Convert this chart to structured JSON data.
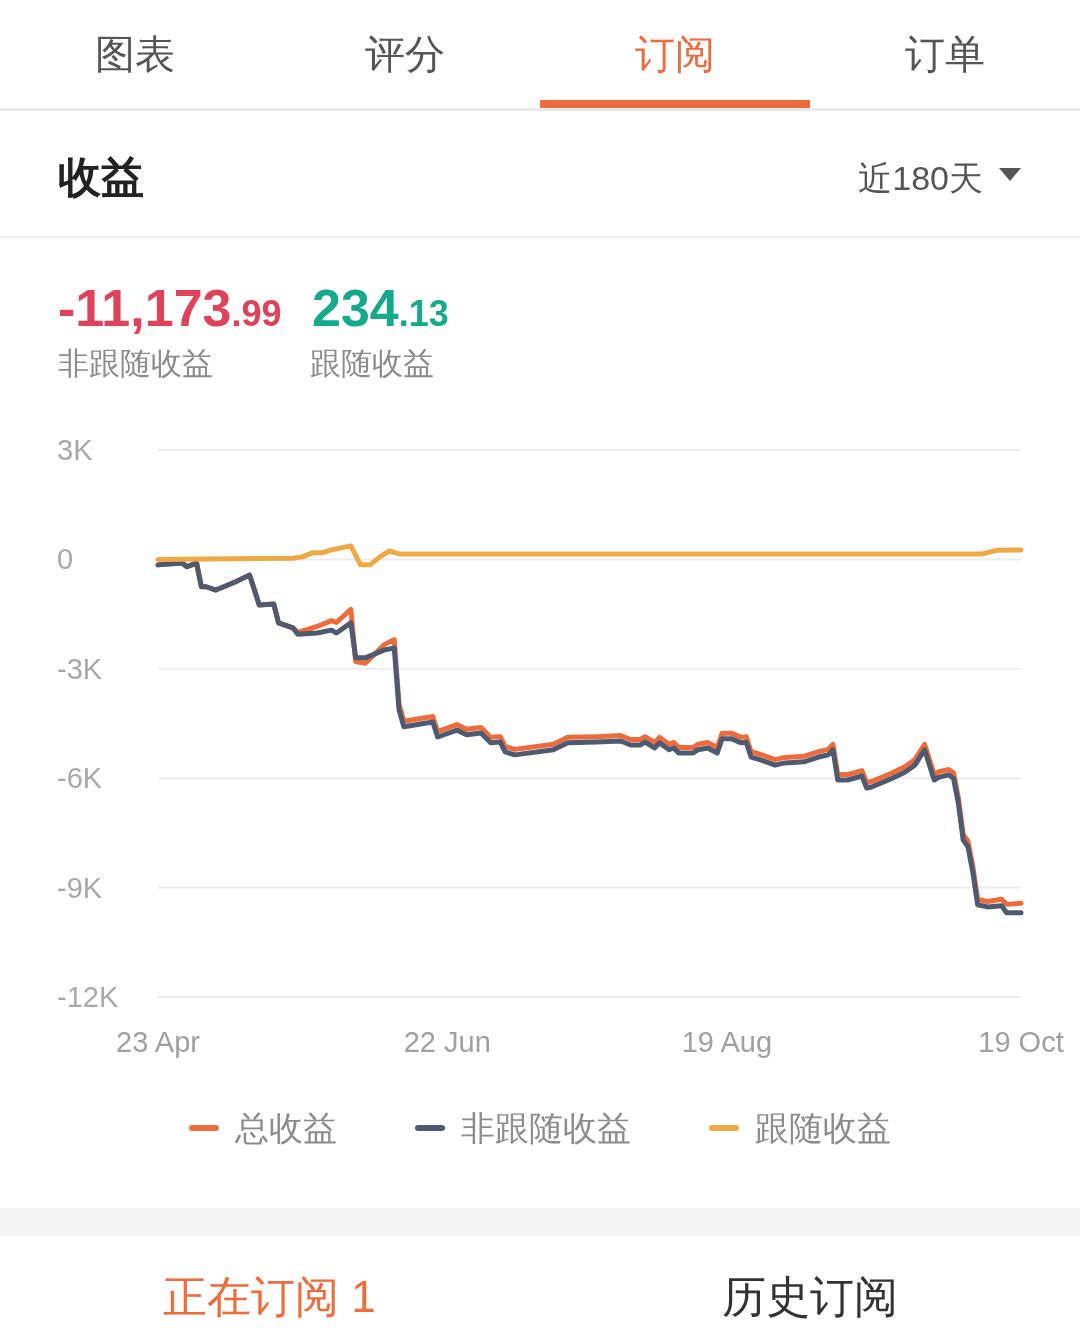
{
  "chart_data": {
    "type": "line",
    "title": "收益",
    "annotations": [
      "图表",
      "评分",
      "订阅",
      "订单",
      "近180天",
      "-11,173.99",
      "非跟随收益",
      "234.13",
      "跟随收益",
      "正在订阅 1",
      "历史订阅"
    ],
    "x": [
      "--04-23",
      "--04-28",
      "--04-29",
      "--05-01",
      "--05-02",
      "--05-03",
      "--05-05",
      "--05-07",
      "--05-09",
      "--05-12",
      "--05-14",
      "--05-17",
      "--05-18",
      "--05-21",
      "--05-22",
      "--05-26",
      "--05-29",
      "--05-30",
      "--06-02",
      "--06-03",
      "--06-05",
      "--06-09",
      "--06-11",
      "--06-12",
      "--06-13",
      "--06-18",
      "--06-19",
      "--06-20",
      "--06-24",
      "--06-26",
      "--06-29",
      "--07-01",
      "--07-03",
      "--07-04",
      "--07-06",
      "--07-14",
      "--07-17",
      "--07-23",
      "--07-28",
      "--07-30",
      "--08-01",
      "--08-02",
      "--08-04",
      "--08-05",
      "--08-07",
      "--08-08",
      "--08-09",
      "--08-12",
      "--08-13",
      "--08-15",
      "--08-17",
      "--08-18",
      "--08-20",
      "--08-22",
      "--08-23",
      "--08-24",
      "--08-26",
      "--08-29",
      "--08-31",
      "--09-04",
      "--09-07",
      "--09-09",
      "--09-10",
      "--09-11",
      "--09-13",
      "--09-16",
      "--09-17",
      "--09-18",
      "--09-22",
      "--09-25",
      "--09-27",
      "--09-29",
      "--10-01",
      "--10-02",
      "--10-04",
      "--10-05",
      "--10-06",
      "--10-07",
      "--10-08",
      "--10-09",
      "--10-10",
      "--10-12",
      "--10-15",
      "--10-16",
      "--10-19"
    ],
    "xlim": [
      "--04-23",
      "--10-19"
    ],
    "xticks": [
      {
        "value": "--04-23",
        "label": "23 Apr"
      },
      {
        "value": "--06-22",
        "label": "22 Jun"
      },
      {
        "value": "--08-19",
        "label": "19 Aug"
      },
      {
        "value": "--10-19",
        "label": "19 Oct"
      }
    ],
    "ylim": [
      -12000,
      3000
    ],
    "yticks": [
      {
        "value": 3000,
        "label": "3K"
      },
      0,
      {
        "value": -3000,
        "label": "-3K"
      },
      {
        "value": -6000,
        "label": "-6K"
      },
      {
        "value": -9000,
        "label": "-9K"
      },
      {
        "value": -12000,
        "label": "-12K"
      }
    ],
    "grid": "y",
    "legend": "bottom",
    "series": [
      {
        "name": "总收益",
        "color": "#ee6b3b",
        "values": [
          -150,
          -100,
          -200,
          -100,
          -750,
          -750,
          -840,
          -730,
          -620,
          -430,
          -1250,
          -1220,
          -1740,
          -1880,
          -2000,
          -1840,
          -1680,
          -1730,
          -1370,
          -2800,
          -2850,
          -2330,
          -2200,
          -3980,
          -4440,
          -4330,
          -4310,
          -4720,
          -4530,
          -4660,
          -4610,
          -4880,
          -4860,
          -5130,
          -5210,
          -5070,
          -4880,
          -4860,
          -4830,
          -4940,
          -4940,
          -4860,
          -5020,
          -4880,
          -5070,
          -5020,
          -5160,
          -5160,
          -5070,
          -5020,
          -5160,
          -4770,
          -4770,
          -4880,
          -4860,
          -5270,
          -5350,
          -5490,
          -5430,
          -5400,
          -5270,
          -5210,
          -5070,
          -5900,
          -5900,
          -5790,
          -6120,
          -6090,
          -5870,
          -5680,
          -5490,
          -5070,
          -5900,
          -5820,
          -5760,
          -5850,
          -6530,
          -7540,
          -7730,
          -8420,
          -9320,
          -9380,
          -9320,
          -9460,
          -9430
        ]
      },
      {
        "name": "非跟随收益",
        "color": "#4d5a70",
        "values": [
          -150,
          -100,
          -200,
          -100,
          -750,
          -750,
          -840,
          -730,
          -620,
          -430,
          -1250,
          -1220,
          -1740,
          -1880,
          -2050,
          -2020,
          -1940,
          -2020,
          -1740,
          -2700,
          -2700,
          -2480,
          -2430,
          -4130,
          -4590,
          -4480,
          -4460,
          -4870,
          -4680,
          -4810,
          -4760,
          -5030,
          -5010,
          -5280,
          -5360,
          -5220,
          -5030,
          -5010,
          -4980,
          -5090,
          -5090,
          -5010,
          -5170,
          -5030,
          -5220,
          -5170,
          -5310,
          -5310,
          -5220,
          -5170,
          -5310,
          -4920,
          -4920,
          -5030,
          -5010,
          -5420,
          -5500,
          -5640,
          -5580,
          -5550,
          -5420,
          -5360,
          -5220,
          -6050,
          -6050,
          -5940,
          -6270,
          -6240,
          -6020,
          -5830,
          -5640,
          -5220,
          -6050,
          -5970,
          -5910,
          -6000,
          -6680,
          -7690,
          -7880,
          -8570,
          -9470,
          -9530,
          -9500,
          -9690,
          -9690
        ]
      },
      {
        "name": "跟随收益",
        "color": "#efa944",
        "x": [
          "--04-23",
          "--05-21",
          "--05-23",
          "--05-25",
          "--05-27",
          "--05-29",
          "--06-02",
          "--06-04",
          "--06-06",
          "--06-08",
          "--06-10",
          "--06-12",
          "--10-11",
          "--10-14",
          "--10-19"
        ],
        "values": [
          0,
          30,
          70,
          180,
          180,
          260,
          370,
          -150,
          -150,
          70,
          230,
          150,
          150,
          250,
          260
        ]
      }
    ]
  }
}
